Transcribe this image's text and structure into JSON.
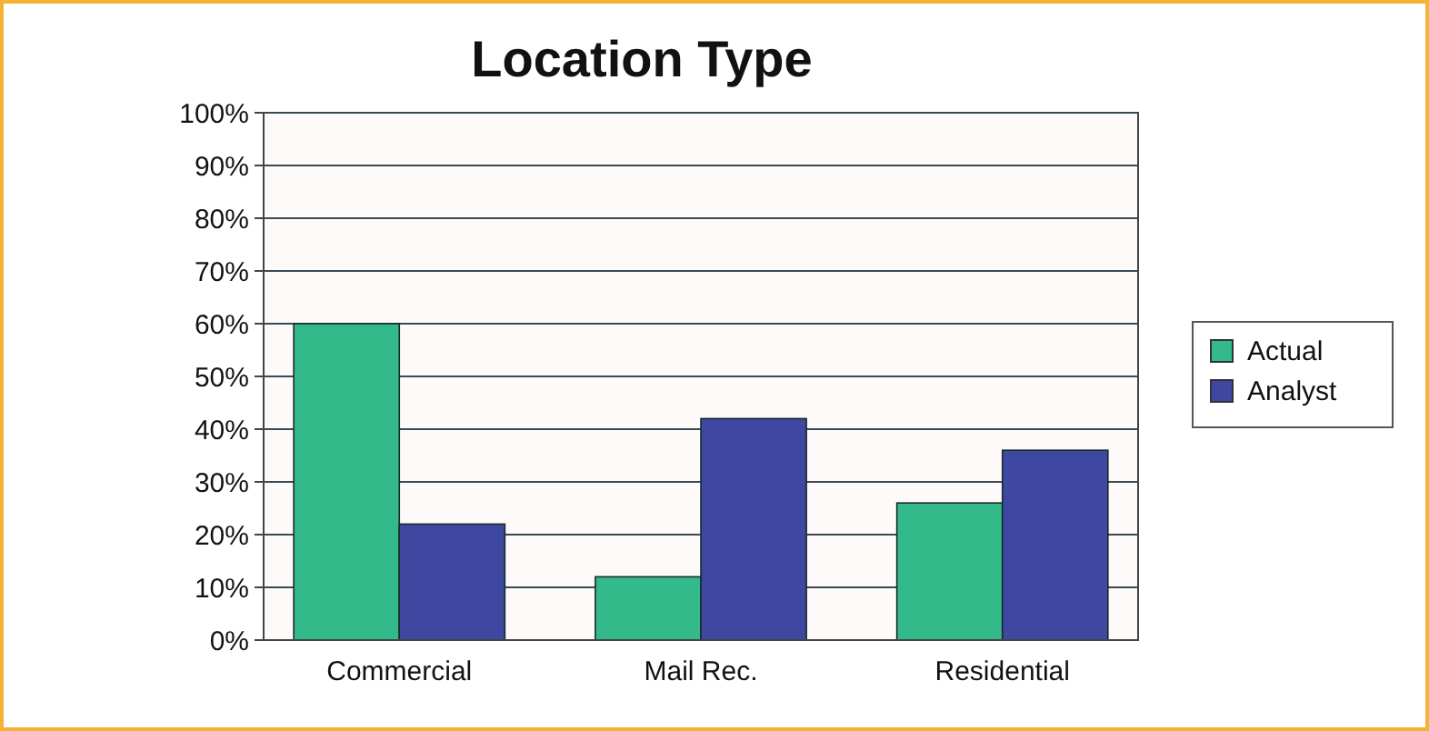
{
  "chart_data": {
    "type": "bar",
    "title": "Location Type",
    "categories": [
      "Commercial",
      "Mail Rec.",
      "Residential"
    ],
    "series": [
      {
        "name": "Actual",
        "color": "#33b98a",
        "values": [
          60,
          12,
          26
        ]
      },
      {
        "name": "Analyst",
        "color": "#3f48a0",
        "values": [
          22,
          42,
          36
        ]
      }
    ],
    "ylim": [
      0,
      100
    ],
    "yticks": [
      {
        "value": 0,
        "label": "0%"
      },
      {
        "value": 10,
        "label": "10%"
      },
      {
        "value": 20,
        "label": "20%"
      },
      {
        "value": 30,
        "label": "30%"
      },
      {
        "value": 40,
        "label": "40%"
      },
      {
        "value": 50,
        "label": "50%"
      },
      {
        "value": 60,
        "label": "60%"
      },
      {
        "value": 70,
        "label": "70%"
      },
      {
        "value": 80,
        "label": "80%"
      },
      {
        "value": 90,
        "label": "90%"
      },
      {
        "value": 100,
        "label": "100%"
      }
    ],
    "grid": "y",
    "legend": "right"
  }
}
